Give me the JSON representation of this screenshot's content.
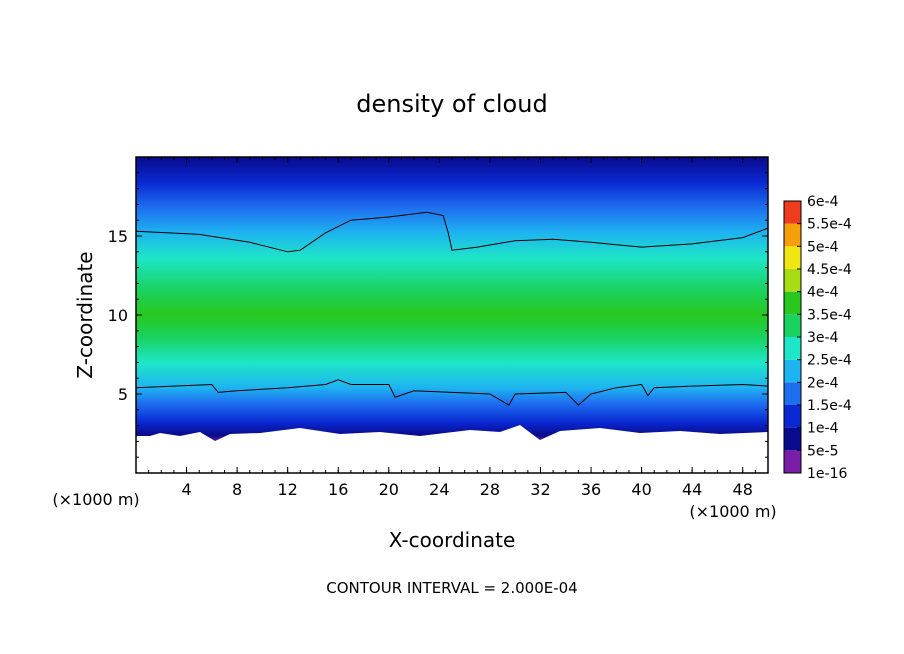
{
  "chart_data": {
    "type": "heatmap",
    "title": "density of cloud",
    "xlabel": "X-coordinate",
    "ylabel": "Z-coordinate",
    "x_unit_label": "(×1000 m)",
    "footer": "CONTOUR INTERVAL = 2.000E-04",
    "xlim": [
      0,
      50
    ],
    "ylim": [
      0,
      20
    ],
    "x_ticks": [
      "4",
      "8",
      "12",
      "16",
      "20",
      "24",
      "28",
      "32",
      "36",
      "40",
      "44",
      "48"
    ],
    "y_ticks": [
      "5",
      "10",
      "15"
    ],
    "colorbar": {
      "labels": [
        "1e-16",
        "5e-5",
        "1e-4",
        "1.5e-4",
        "2e-4",
        "2.5e-4",
        "3e-4",
        "3.5e-4",
        "4e-4",
        "4.5e-4",
        "5e-4",
        "5.5e-4",
        "6e-4"
      ],
      "colors": [
        "#7a1ea8",
        "#0a0a8c",
        "#0a28d2",
        "#1e6ef0",
        "#1eb4f0",
        "#1ee6c8",
        "#19d25f",
        "#28c81e",
        "#aadc14",
        "#f0e614",
        "#f5a00a",
        "#f03c1e",
        "#f08282"
      ]
    },
    "contours": [
      {
        "level": "2e-4",
        "upper": [
          [
            0,
            15.3
          ],
          [
            5,
            15.1
          ],
          [
            9,
            14.6
          ],
          [
            12,
            14.0
          ],
          [
            13,
            14.1
          ],
          [
            15,
            15.2
          ],
          [
            17,
            16.0
          ],
          [
            20,
            16.2
          ],
          [
            23,
            16.5
          ],
          [
            24.3,
            16.3
          ],
          [
            24.7,
            15.2
          ],
          [
            25,
            14.1
          ],
          [
            27,
            14.3
          ],
          [
            30,
            14.7
          ],
          [
            33,
            14.8
          ],
          [
            36,
            14.6
          ],
          [
            40,
            14.3
          ],
          [
            44,
            14.5
          ],
          [
            48,
            14.9
          ],
          [
            50,
            15.5
          ]
        ],
        "lower": [
          [
            0,
            5.4
          ],
          [
            3,
            5.5
          ],
          [
            6,
            5.6
          ],
          [
            6.5,
            5.1
          ],
          [
            8,
            5.2
          ],
          [
            12,
            5.4
          ],
          [
            15,
            5.6
          ],
          [
            16,
            5.9
          ],
          [
            17,
            5.6
          ],
          [
            20,
            5.6
          ],
          [
            20.5,
            4.8
          ],
          [
            22,
            5.2
          ],
          [
            25,
            5.1
          ],
          [
            28,
            5.0
          ],
          [
            29.5,
            4.3
          ],
          [
            30,
            5.0
          ],
          [
            34,
            5.1
          ],
          [
            35,
            4.3
          ],
          [
            36,
            5.0
          ],
          [
            38,
            5.4
          ],
          [
            40,
            5.6
          ],
          [
            40.5,
            4.9
          ],
          [
            41,
            5.4
          ],
          [
            44,
            5.5
          ],
          [
            48,
            5.6
          ],
          [
            50,
            5.5
          ]
        ]
      }
    ]
  }
}
